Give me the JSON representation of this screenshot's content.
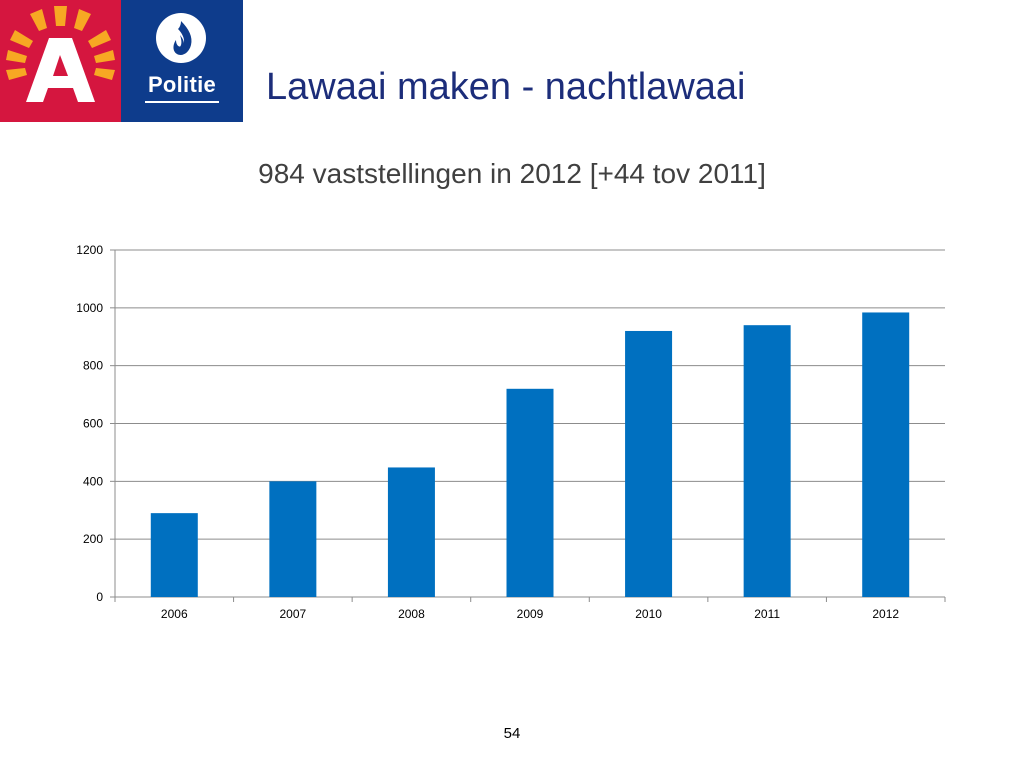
{
  "header": {
    "title": "Lawaai maken - nachtlawaai",
    "politie_logo_text": "Politie"
  },
  "subtitle": "984 vaststellingen in 2012 [+44 tov 2011]",
  "page_number": "54",
  "colors": {
    "bar": "#0070c0",
    "title": "#1c2d7a",
    "antwerpen_red": "#d5163f",
    "antwerpen_yellow": "#f7a823",
    "politie_blue": "#0e3c8c",
    "gridline": "#8c8c8c"
  },
  "chart_data": {
    "type": "bar",
    "categories": [
      "2006",
      "2007",
      "2008",
      "2009",
      "2010",
      "2011",
      "2012"
    ],
    "values": [
      290,
      400,
      448,
      720,
      920,
      940,
      984
    ],
    "title": "",
    "xlabel": "",
    "ylabel": "",
    "ylim": [
      0,
      1200
    ],
    "yticks": [
      0,
      200,
      400,
      600,
      800,
      1000,
      1200
    ],
    "grid": true,
    "legend": "none"
  }
}
